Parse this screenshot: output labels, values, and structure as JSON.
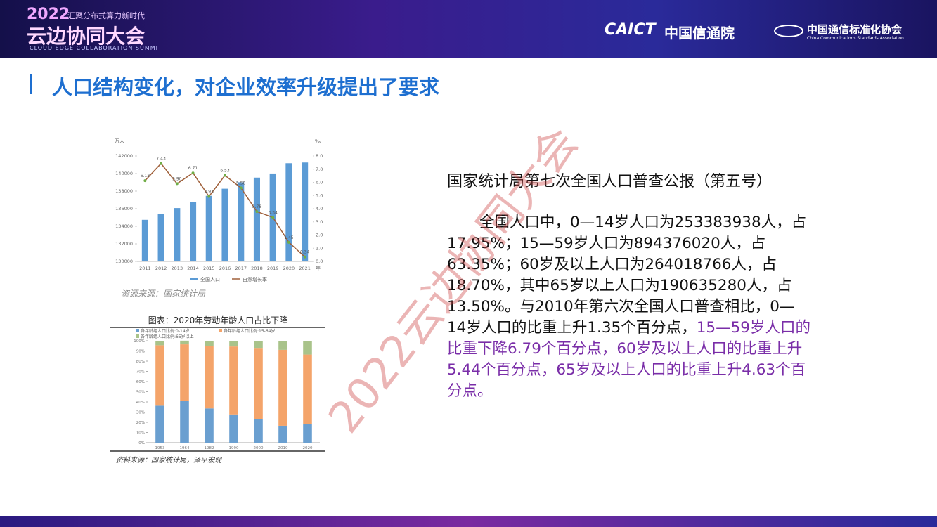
{
  "header": {
    "year": "2022",
    "slogan": "汇聚分布式算力新时代",
    "event": "云边协同大会",
    "event_en": "CLOUD EDGE COLLABORATION SUMMIT",
    "logo1_en": "CAICT",
    "logo1_cn": "中国信通院",
    "logo2_cn": "中国通信标准化协会",
    "logo2_en": "China Communications Standards Association"
  },
  "title": "人口结构变化，对企业效率升级提出了要求",
  "watermark": "2022云边协同大会",
  "text": {
    "heading": "国家统计局第七次全国人口普查公报（第五号）",
    "body": "全国人口中，0—14岁人口为253383938人，占17.95%；15—59岁人口为894376020人，占63.35%；60岁及以上人口为264018766人，占18.70%，其中65岁以上人口为190635280人，占13.50%。与2010年第六次全国人口普查相比，0—14岁人口的比重上升1.35个百分点，",
    "highlight": "15—59岁人口的比重下降6.79个百分点，60岁及以上人口的比重上升5.44个百分点，65岁及以上人口的比重上升4.63个百分点。"
  },
  "chart_data": [
    {
      "type": "bar",
      "y_label": "万人",
      "y2_label": "‰",
      "x_label": "年",
      "source": "资源来源：国家统计局",
      "categories": [
        "2011",
        "2012",
        "2013",
        "2014",
        "2015",
        "2016",
        "2017",
        "2018",
        "2019",
        "2020",
        "2021"
      ],
      "series": [
        {
          "name": "全国人口",
          "color": "#5b9bd5",
          "values": [
            134735,
            135404,
            136072,
            136782,
            137462,
            138271,
            139008,
            139538,
            140005,
            141178,
            141260
          ]
        },
        {
          "name": "自然增长率",
          "type": "line",
          "axis": "y2",
          "color": "#a0603a",
          "marker_color": "#70ad47",
          "values": [
            6.13,
            7.43,
            5.9,
            6.71,
            4.93,
            6.53,
            5.58,
            3.78,
            3.34,
            1.45,
            0.34
          ],
          "value_labels": [
            "6.13",
            "7.43",
            "5.90",
            "6.71",
            "4.93",
            "6.53",
            "5.58",
            "3.78",
            "3.34",
            "1.45",
            "0.34"
          ]
        }
      ],
      "ylim": [
        130000,
        142000
      ],
      "yticks": [
        130000,
        132000,
        134000,
        136000,
        138000,
        140000,
        142000
      ],
      "y2lim": [
        0,
        8
      ],
      "y2ticks": [
        {
          "value": 0,
          "label": "0.0"
        },
        {
          "value": 1,
          "label": "1.0"
        },
        {
          "value": 2,
          "label": "2.0"
        },
        {
          "value": 3,
          "label": "3.0"
        },
        {
          "value": 4,
          "label": "4.0"
        },
        {
          "value": 5,
          "label": "5.0"
        },
        {
          "value": 6,
          "label": "6.0"
        },
        {
          "value": 7,
          "label": "7.0"
        },
        {
          "value": 8,
          "label": "8.0"
        }
      ]
    },
    {
      "type": "stacked_bar",
      "title": "图表：2020年劳动年龄人口占比下降",
      "source": "资料来源：国家统计局，泽平宏观",
      "categories": [
        "1953",
        "1964",
        "1982",
        "1990",
        "2000",
        "2010",
        "2020"
      ],
      "series": [
        {
          "name": "各年龄组人口比例:0-14岁",
          "color": "#6a9fd0",
          "values": [
            36.3,
            40.7,
            33.6,
            27.7,
            22.9,
            16.6,
            17.95
          ]
        },
        {
          "name": "各年龄组人口比例:15-64岁",
          "color": "#f4a46a",
          "values": [
            59.3,
            55.8,
            61.5,
            66.7,
            70.1,
            74.5,
            68.55
          ]
        },
        {
          "name": "各年龄组人口比例:65岁以上",
          "color": "#a9c38a",
          "values": [
            4.4,
            3.6,
            4.9,
            5.6,
            7.0,
            8.9,
            13.5
          ]
        }
      ],
      "ylim": [
        0,
        100
      ],
      "yticks": [
        {
          "value": 0,
          "label": "0%"
        },
        {
          "value": 10,
          "label": "10%"
        },
        {
          "value": 20,
          "label": "20%"
        },
        {
          "value": 30,
          "label": "30%"
        },
        {
          "value": 40,
          "label": "40%"
        },
        {
          "value": 50,
          "label": "50%"
        },
        {
          "value": 60,
          "label": "60%"
        },
        {
          "value": 70,
          "label": "70%"
        },
        {
          "value": 80,
          "label": "80%"
        },
        {
          "value": 90,
          "label": "90%"
        },
        {
          "value": 100,
          "label": "100%"
        }
      ]
    }
  ]
}
